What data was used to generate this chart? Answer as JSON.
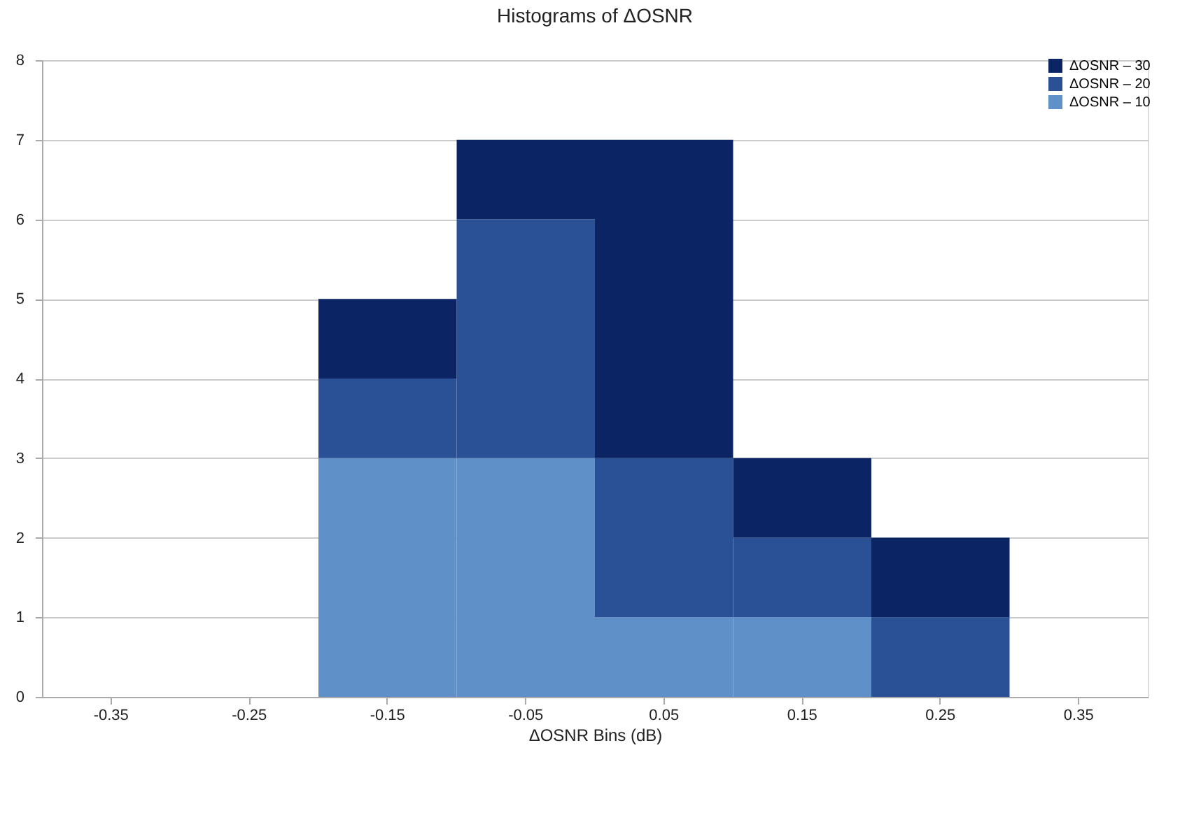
{
  "chart_data": {
    "type": "bar",
    "title": "Histograms of ΔOSNR",
    "xlabel": "ΔOSNR Bins (dB)",
    "categories": [
      "-0.35",
      "-0.25",
      "-0.15",
      "-0.05",
      "0.05",
      "0.15",
      "0.25",
      "0.35"
    ],
    "stacked": true,
    "series": [
      {
        "name": "ΔOSNR – 10",
        "color": "#6090c8",
        "values": [
          0,
          0,
          3,
          3,
          1,
          1,
          0,
          0
        ]
      },
      {
        "name": "ΔOSNR – 20",
        "color": "#2a5196",
        "values": [
          0,
          0,
          1,
          3,
          2,
          1,
          1,
          0
        ]
      },
      {
        "name": "ΔOSNR – 30",
        "color": "#0b2463",
        "values": [
          0,
          0,
          1,
          1,
          4,
          1,
          1,
          0
        ]
      }
    ],
    "ylim": [
      0,
      8
    ],
    "yticks": [
      0,
      1,
      2,
      3,
      4,
      5,
      6,
      7,
      8
    ],
    "grid": "y",
    "legend": "top right"
  }
}
